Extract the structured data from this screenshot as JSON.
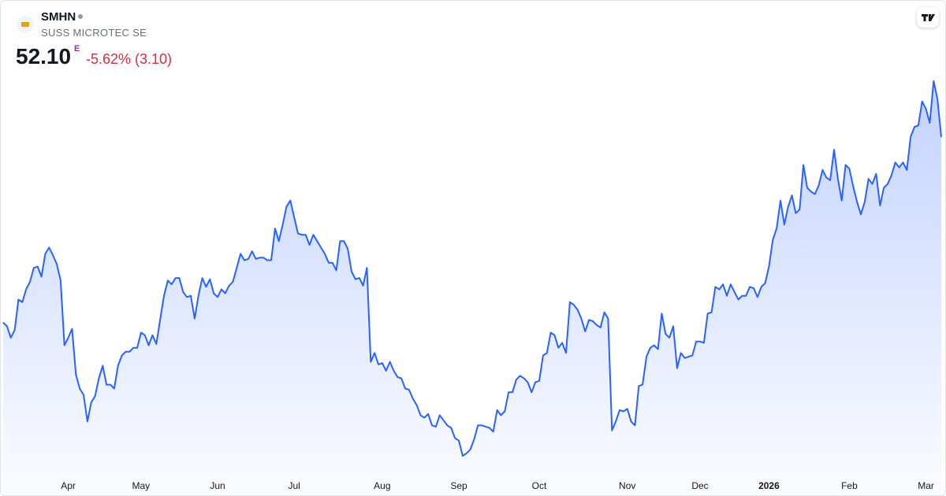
{
  "header": {
    "symbol": "SMHN",
    "name": "SUSS MICROTEC SE",
    "price": "52.10",
    "price_flag": "E",
    "change": "-5.62% (3.10)"
  },
  "chart_data": {
    "type": "area",
    "color": "#2962ff",
    "values": [
      37.5,
      37.2,
      36.3,
      36.9,
      39.3,
      39.1,
      40.1,
      40.7,
      41.8,
      41.9,
      41.1,
      42.9,
      43.4,
      42.8,
      42.1,
      40.8,
      35.7,
      36.3,
      37.0,
      33.4,
      32.3,
      31.8,
      29.7,
      31.2,
      31.7,
      33.1,
      34.1,
      32.6,
      32.6,
      32.3,
      34.1,
      34.9,
      35.2,
      35.2,
      35.5,
      35.5,
      36.7,
      36.5,
      35.7,
      36.5,
      35.8,
      37.7,
      39.6,
      40.8,
      40.5,
      41.0,
      41.0,
      39.9,
      39.5,
      39.6,
      37.8,
      39.6,
      41.0,
      40.3,
      40.9,
      39.8,
      39.5,
      40.1,
      39.8,
      40.4,
      40.7,
      41.8,
      42.9,
      42.4,
      42.5,
      43.1,
      42.5,
      42.6,
      42.6,
      42.4,
      42.4,
      44.9,
      43.9,
      45.2,
      46.6,
      47.1,
      45.8,
      44.5,
      44.4,
      44.4,
      43.6,
      44.4,
      43.9,
      43.4,
      42.9,
      42.2,
      42.2,
      41.6,
      43.9,
      43.9,
      43.3,
      41.5,
      40.9,
      41.0,
      40.4,
      41.8,
      34.4,
      35.1,
      34.2,
      34.3,
      33.7,
      34.4,
      33.7,
      33.2,
      33.1,
      32.3,
      32.2,
      31.5,
      31.0,
      30.2,
      30.0,
      30.3,
      29.4,
      29.3,
      30.2,
      29.8,
      29.4,
      29.2,
      28.4,
      28.2,
      27.0,
      27.2,
      27.5,
      28.3,
      29.4,
      29.4,
      29.3,
      29.2,
      28.9,
      30.6,
      30.2,
      30.5,
      32.0,
      32.0,
      33.0,
      33.3,
      33.1,
      32.8,
      32.0,
      32.8,
      32.9,
      34.9,
      35.1,
      36.7,
      36.5,
      35.5,
      35.9,
      35.1,
      39.1,
      38.9,
      38.5,
      37.8,
      36.8,
      37.7,
      37.6,
      37.3,
      37.1,
      38.3,
      37.8,
      29.0,
      29.7,
      30.6,
      30.5,
      30.7,
      29.7,
      29.4,
      32.5,
      32.6,
      34.8,
      35.5,
      35.7,
      35.4,
      38.2,
      36.6,
      36.3,
      37.2,
      33.9,
      35.1,
      34.7,
      34.8,
      34.9,
      36.0,
      36.0,
      35.9,
      38.2,
      38.3,
      40.3,
      40.1,
      40.5,
      39.6,
      40.5,
      39.9,
      39.3,
      39.6,
      39.6,
      40.3,
      40.2,
      39.5,
      40.3,
      40.6,
      41.9,
      44.0,
      44.9,
      47.1,
      45.2,
      46.6,
      47.5,
      46.1,
      46.4,
      49.9,
      48.1,
      47.8,
      47.6,
      48.3,
      49.5,
      48.9,
      48.7,
      51.1,
      48.8,
      47.1,
      49.9,
      49.6,
      48.2,
      47.0,
      46.0,
      47.0,
      48.8,
      48.4,
      49.2,
      46.7,
      48.1,
      48.4,
      49.1,
      50.1,
      49.7,
      50.1,
      49.5,
      52.1,
      52.9,
      53.0,
      54.9,
      54.3,
      53.2,
      56.5,
      55.1,
      52.1
    ],
    "xticks": [
      {
        "value": 17,
        "label": "Apr"
      },
      {
        "value": 36,
        "label": "May"
      },
      {
        "value": 56,
        "label": "Jun"
      },
      {
        "value": 76,
        "label": "Jul"
      },
      {
        "value": 99,
        "label": "Aug"
      },
      {
        "value": 119,
        "label": "Sep"
      },
      {
        "value": 140,
        "label": "Oct"
      },
      {
        "value": 163,
        "label": "Nov"
      },
      {
        "value": 182,
        "label": "Dec"
      },
      {
        "value": 200,
        "label": "2026"
      },
      {
        "value": 221,
        "label": "Feb"
      },
      {
        "value": 241,
        "label": "Mar"
      }
    ]
  }
}
